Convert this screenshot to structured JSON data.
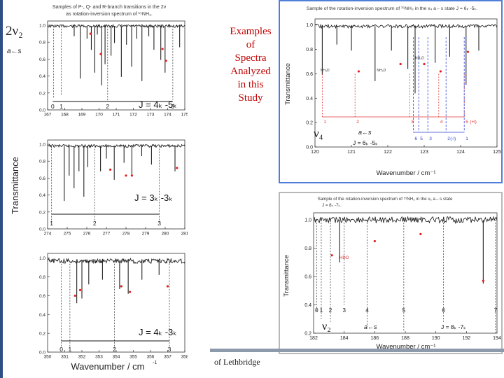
{
  "slide": {
    "title_lines": [
      "Examples",
      "of",
      "Spectra",
      "Analyzed",
      "in this",
      "Study"
    ],
    "footer": "of Lethbridge"
  },
  "left_panel": {
    "ylabel": "Transmittance",
    "xlabel": "Wavenumber / cm",
    "xlabel_sup": "-1"
  },
  "chart_data": [
    {
      "type": "line",
      "id": "a",
      "title_lines": [
        "Samples of P-, Q- and R-branch transitions in the 2ν",
        "as rotation-inversion spectrum of ¹⁵NH₃."
      ],
      "band": "2ν₂",
      "transition": "a←s",
      "ylim": [
        0.0,
        1.05
      ],
      "yticks": [
        0.0,
        0.2,
        0.4,
        0.6,
        0.8,
        1.0
      ],
      "xlim": [
        167,
        175
      ],
      "xticks": [
        167,
        168,
        169,
        170,
        171,
        172,
        173,
        174,
        175
      ],
      "baseline": 0.99,
      "k_markers": [
        {
          "label": "0",
          "x": 167.3
        },
        {
          "label": "1",
          "x": 167.8
        },
        {
          "label": "2",
          "x": 170.5
        },
        {
          "label": "3",
          "x": 174.3
        }
      ],
      "j_label": "J = 4ₖ -5ₖ",
      "lines": [
        {
          "x": 167.35,
          "depth": 0.85,
          "style": "dash"
        },
        {
          "x": 167.8,
          "depth": 0.82,
          "style": "dash"
        },
        {
          "x": 168.55,
          "depth": 0.12
        },
        {
          "x": 168.9,
          "depth": 0.62
        },
        {
          "x": 169.3,
          "depth": 0.15
        },
        {
          "x": 169.55,
          "depth": 0.28
        },
        {
          "x": 169.75,
          "depth": 0.55
        },
        {
          "x": 169.9,
          "depth": 0.1
        },
        {
          "x": 170.15,
          "depth": 0.7
        },
        {
          "x": 170.35,
          "depth": 0.45
        },
        {
          "x": 170.5,
          "depth": 0.88,
          "style": "dash"
        },
        {
          "x": 170.7,
          "depth": 0.35
        },
        {
          "x": 170.9,
          "depth": 0.2
        },
        {
          "x": 171.3,
          "depth": 0.6
        },
        {
          "x": 171.6,
          "depth": 0.22
        },
        {
          "x": 171.9,
          "depth": 0.48
        },
        {
          "x": 172.2,
          "depth": 0.15
        },
        {
          "x": 172.5,
          "depth": 0.65
        },
        {
          "x": 172.9,
          "depth": 0.12
        },
        {
          "x": 173.2,
          "depth": 0.28
        },
        {
          "x": 173.6,
          "depth": 0.4
        },
        {
          "x": 173.85,
          "depth": 0.55
        },
        {
          "x": 174.3,
          "depth": 0.87,
          "style": "dash"
        },
        {
          "x": 174.7,
          "depth": 0.25
        }
      ],
      "red_marks": [
        {
          "x": 169.5,
          "y": 0.9
        },
        {
          "x": 170.1,
          "y": 0.66
        },
        {
          "x": 173.7,
          "y": 0.72
        },
        {
          "x": 173.9,
          "y": 0.58
        }
      ]
    },
    {
      "type": "line",
      "id": "b",
      "ylim": [
        0.0,
        1.05
      ],
      "yticks": [
        0.0,
        0.2,
        0.4,
        0.6,
        0.8,
        1.0
      ],
      "xlim": [
        274,
        281
      ],
      "xticks": [
        274,
        275,
        276,
        277,
        278,
        279,
        280,
        281
      ],
      "baseline": 0.98,
      "k_markers": [
        {
          "label": "1",
          "x": 274.2
        },
        {
          "label": "2",
          "x": 276.4
        },
        {
          "label": "3",
          "x": 279.7
        }
      ],
      "j_label": "J = 3ₖ -3ₖ",
      "lines": [
        {
          "x": 274.2,
          "depth": 0.9,
          "style": "dash"
        },
        {
          "x": 274.85,
          "depth": 0.65
        },
        {
          "x": 275.1,
          "depth": 0.35
        },
        {
          "x": 275.35,
          "depth": 0.5
        },
        {
          "x": 275.6,
          "depth": 0.3
        },
        {
          "x": 275.85,
          "depth": 0.6
        },
        {
          "x": 276.05,
          "depth": 0.25
        },
        {
          "x": 276.4,
          "depth": 0.88,
          "style": "dash"
        },
        {
          "x": 276.7,
          "depth": 0.3
        },
        {
          "x": 277.0,
          "depth": 0.15
        },
        {
          "x": 277.4,
          "depth": 0.4
        },
        {
          "x": 277.9,
          "depth": 0.2
        },
        {
          "x": 278.3,
          "depth": 0.35
        },
        {
          "x": 278.8,
          "depth": 0.12
        },
        {
          "x": 279.3,
          "depth": 0.22
        },
        {
          "x": 279.7,
          "depth": 0.9,
          "style": "dash"
        },
        {
          "x": 280.5,
          "depth": 0.3
        }
      ],
      "red_marks": [
        {
          "x": 277.2,
          "y": 0.7
        },
        {
          "x": 278.0,
          "y": 0.63
        },
        {
          "x": 278.3,
          "y": 0.63
        },
        {
          "x": 280.6,
          "y": 0.72
        }
      ]
    },
    {
      "type": "line",
      "id": "c",
      "ylim": [
        0.0,
        1.05
      ],
      "yticks": [
        0.0,
        0.2,
        0.4,
        0.6,
        0.8,
        1.0
      ],
      "xlim": [
        350,
        358
      ],
      "xticks": [
        350,
        351,
        352,
        353,
        354,
        355,
        356,
        357,
        358
      ],
      "baseline": 0.97,
      "k_markers": [
        {
          "label": "0",
          "x": 350.8
        },
        {
          "label": "1",
          "x": 351.3
        },
        {
          "label": "2",
          "x": 353.9
        },
        {
          "label": "3",
          "x": 357.1
        }
      ],
      "j_label": "J = 4ₖ -3ₖ",
      "lines": [
        {
          "x": 350.8,
          "depth": 0.92,
          "style": "dash"
        },
        {
          "x": 351.3,
          "depth": 0.93,
          "style": "dash"
        },
        {
          "x": 351.7,
          "depth": 0.45
        },
        {
          "x": 352.0,
          "depth": 0.4
        },
        {
          "x": 352.4,
          "depth": 0.25
        },
        {
          "x": 353.2,
          "depth": 0.2
        },
        {
          "x": 353.9,
          "depth": 0.93,
          "style": "dash"
        },
        {
          "x": 354.2,
          "depth": 0.3
        },
        {
          "x": 354.7,
          "depth": 0.35
        },
        {
          "x": 355.5,
          "depth": 0.2
        },
        {
          "x": 356.5,
          "depth": 0.15
        },
        {
          "x": 357.1,
          "depth": 0.92,
          "style": "dash"
        }
      ],
      "red_marks": [
        {
          "x": 351.6,
          "y": 0.6
        },
        {
          "x": 351.9,
          "y": 0.66
        },
        {
          "x": 354.3,
          "y": 0.7
        },
        {
          "x": 354.8,
          "y": 0.64
        },
        {
          "x": 357.0,
          "y": 0.7
        }
      ]
    },
    {
      "type": "line",
      "id": "d",
      "title_lines": [
        "Sample of the rotation-inversion spectrum of ¹⁵NH₃ in the ν₄ a←s state J = 6ₖ -5ₖ."
      ],
      "ylabel": "Transmittance",
      "xlabel": "Wavenumber / cm⁻¹",
      "ylim": [
        0.0,
        1.05
      ],
      "yticks": [
        0.0,
        0.2,
        0.4,
        0.6,
        0.8,
        1.0
      ],
      "xlim": [
        120,
        125
      ],
      "xticks": [
        120,
        121,
        122,
        123,
        124,
        125
      ],
      "baseline": 0.99,
      "band": "ν₄",
      "transition": "a←s",
      "j_label": "J = 6ₖ -5ₖ",
      "plus_markers": [
        {
          "label": "1",
          "x": 120.2
        },
        {
          "label": "2",
          "x": 121.1
        },
        {
          "label": "3",
          "x": 122.6
        },
        {
          "label": "4",
          "x": 123.4
        },
        {
          "label": "5",
          "x": 124.1
        }
      ],
      "plus_label": "(+l)",
      "minus_markers": [
        {
          "label": "6",
          "x": 122.7
        },
        {
          "label": "5",
          "x": 122.85
        },
        {
          "label": "3",
          "x": 123.1
        },
        {
          "label": "2",
          "x": 123.6
        },
        {
          "label": "1",
          "x": 124.1
        }
      ],
      "minus_label": "(-l)",
      "tags": [
        {
          "text": "NH₃D",
          "x": 120.15,
          "y": 0.62
        },
        {
          "text": "NH₃D",
          "x": 121.7,
          "y": 0.62
        },
        {
          "text": "NH₃D",
          "x": 122.75,
          "y": 0.72
        }
      ],
      "lines": [
        {
          "x": 120.2,
          "depth": 0.4
        },
        {
          "x": 120.6,
          "depth": 0.15
        },
        {
          "x": 121.0,
          "depth": 0.2
        },
        {
          "x": 121.65,
          "depth": 0.45
        },
        {
          "x": 122.1,
          "depth": 0.2
        },
        {
          "x": 122.55,
          "depth": 0.35
        },
        {
          "x": 122.75,
          "depth": 0.55
        },
        {
          "x": 123.3,
          "depth": 0.3
        },
        {
          "x": 123.7,
          "depth": 0.25
        },
        {
          "x": 124.15,
          "depth": 0.48
        },
        {
          "x": 124.5,
          "depth": 0.2
        }
      ],
      "red_marks": [
        {
          "x": 121.2,
          "y": 0.62
        },
        {
          "x": 122.35,
          "y": 0.68
        },
        {
          "x": 123.0,
          "y": 0.68
        },
        {
          "x": 123.45,
          "y": 0.62
        },
        {
          "x": 124.2,
          "y": 0.78
        }
      ]
    },
    {
      "type": "line",
      "id": "e",
      "title_lines": [
        "Sample of the rotation-inversion spectrum of ¹⁵NH₃ in the ν₂ a←s state",
        "J = 8ₖ -7ₖ."
      ],
      "ylabel": "Transmittance",
      "xlabel": "Wavenumber / cm⁻¹",
      "ylim": [
        0.2,
        1.05
      ],
      "yticks": [
        0.2,
        0.4,
        0.6,
        0.8,
        1.0
      ],
      "xlim": [
        182,
        194
      ],
      "xticks": [
        182,
        184,
        186,
        188,
        190,
        192,
        194
      ],
      "baseline": 1.0,
      "band": "ν₂",
      "transition": "a←s",
      "j_label": "J = 8ₖ -7ₖ",
      "k_markers": [
        {
          "label": "0",
          "x": 182.2
        },
        {
          "label": "1",
          "x": 182.5
        },
        {
          "label": "2",
          "x": 183.1
        },
        {
          "label": "3",
          "x": 184.0
        },
        {
          "label": "4",
          "x": 185.5
        },
        {
          "label": "5",
          "x": 187.9
        },
        {
          "label": "6",
          "x": 190.5
        },
        {
          "label": "7",
          "x": 193.9
        }
      ],
      "hdo_label": "HDO",
      "hdo_x": 184.0,
      "lines": [
        {
          "x": 182.2,
          "depth": 0.65,
          "style": "dash"
        },
        {
          "x": 182.5,
          "depth": 0.7,
          "style": "dash"
        },
        {
          "x": 183.1,
          "depth": 0.72,
          "style": "dash"
        },
        {
          "x": 183.7,
          "depth": 0.3
        },
        {
          "x": 184.0,
          "depth": 0.6,
          "style": "dash"
        },
        {
          "x": 185.5,
          "depth": 0.75,
          "style": "dash"
        },
        {
          "x": 187.9,
          "depth": 0.78,
          "style": "dash"
        },
        {
          "x": 190.5,
          "depth": 0.72,
          "style": "dash"
        },
        {
          "x": 193.1,
          "depth": 0.45
        },
        {
          "x": 193.9,
          "depth": 0.8,
          "style": "dash"
        }
      ],
      "red_marks": [
        {
          "x": 183.2,
          "y": 0.75
        },
        {
          "x": 186.0,
          "y": 0.85
        },
        {
          "x": 189.0,
          "y": 0.9
        },
        {
          "x": 193.1,
          "y": 0.57
        }
      ]
    }
  ]
}
